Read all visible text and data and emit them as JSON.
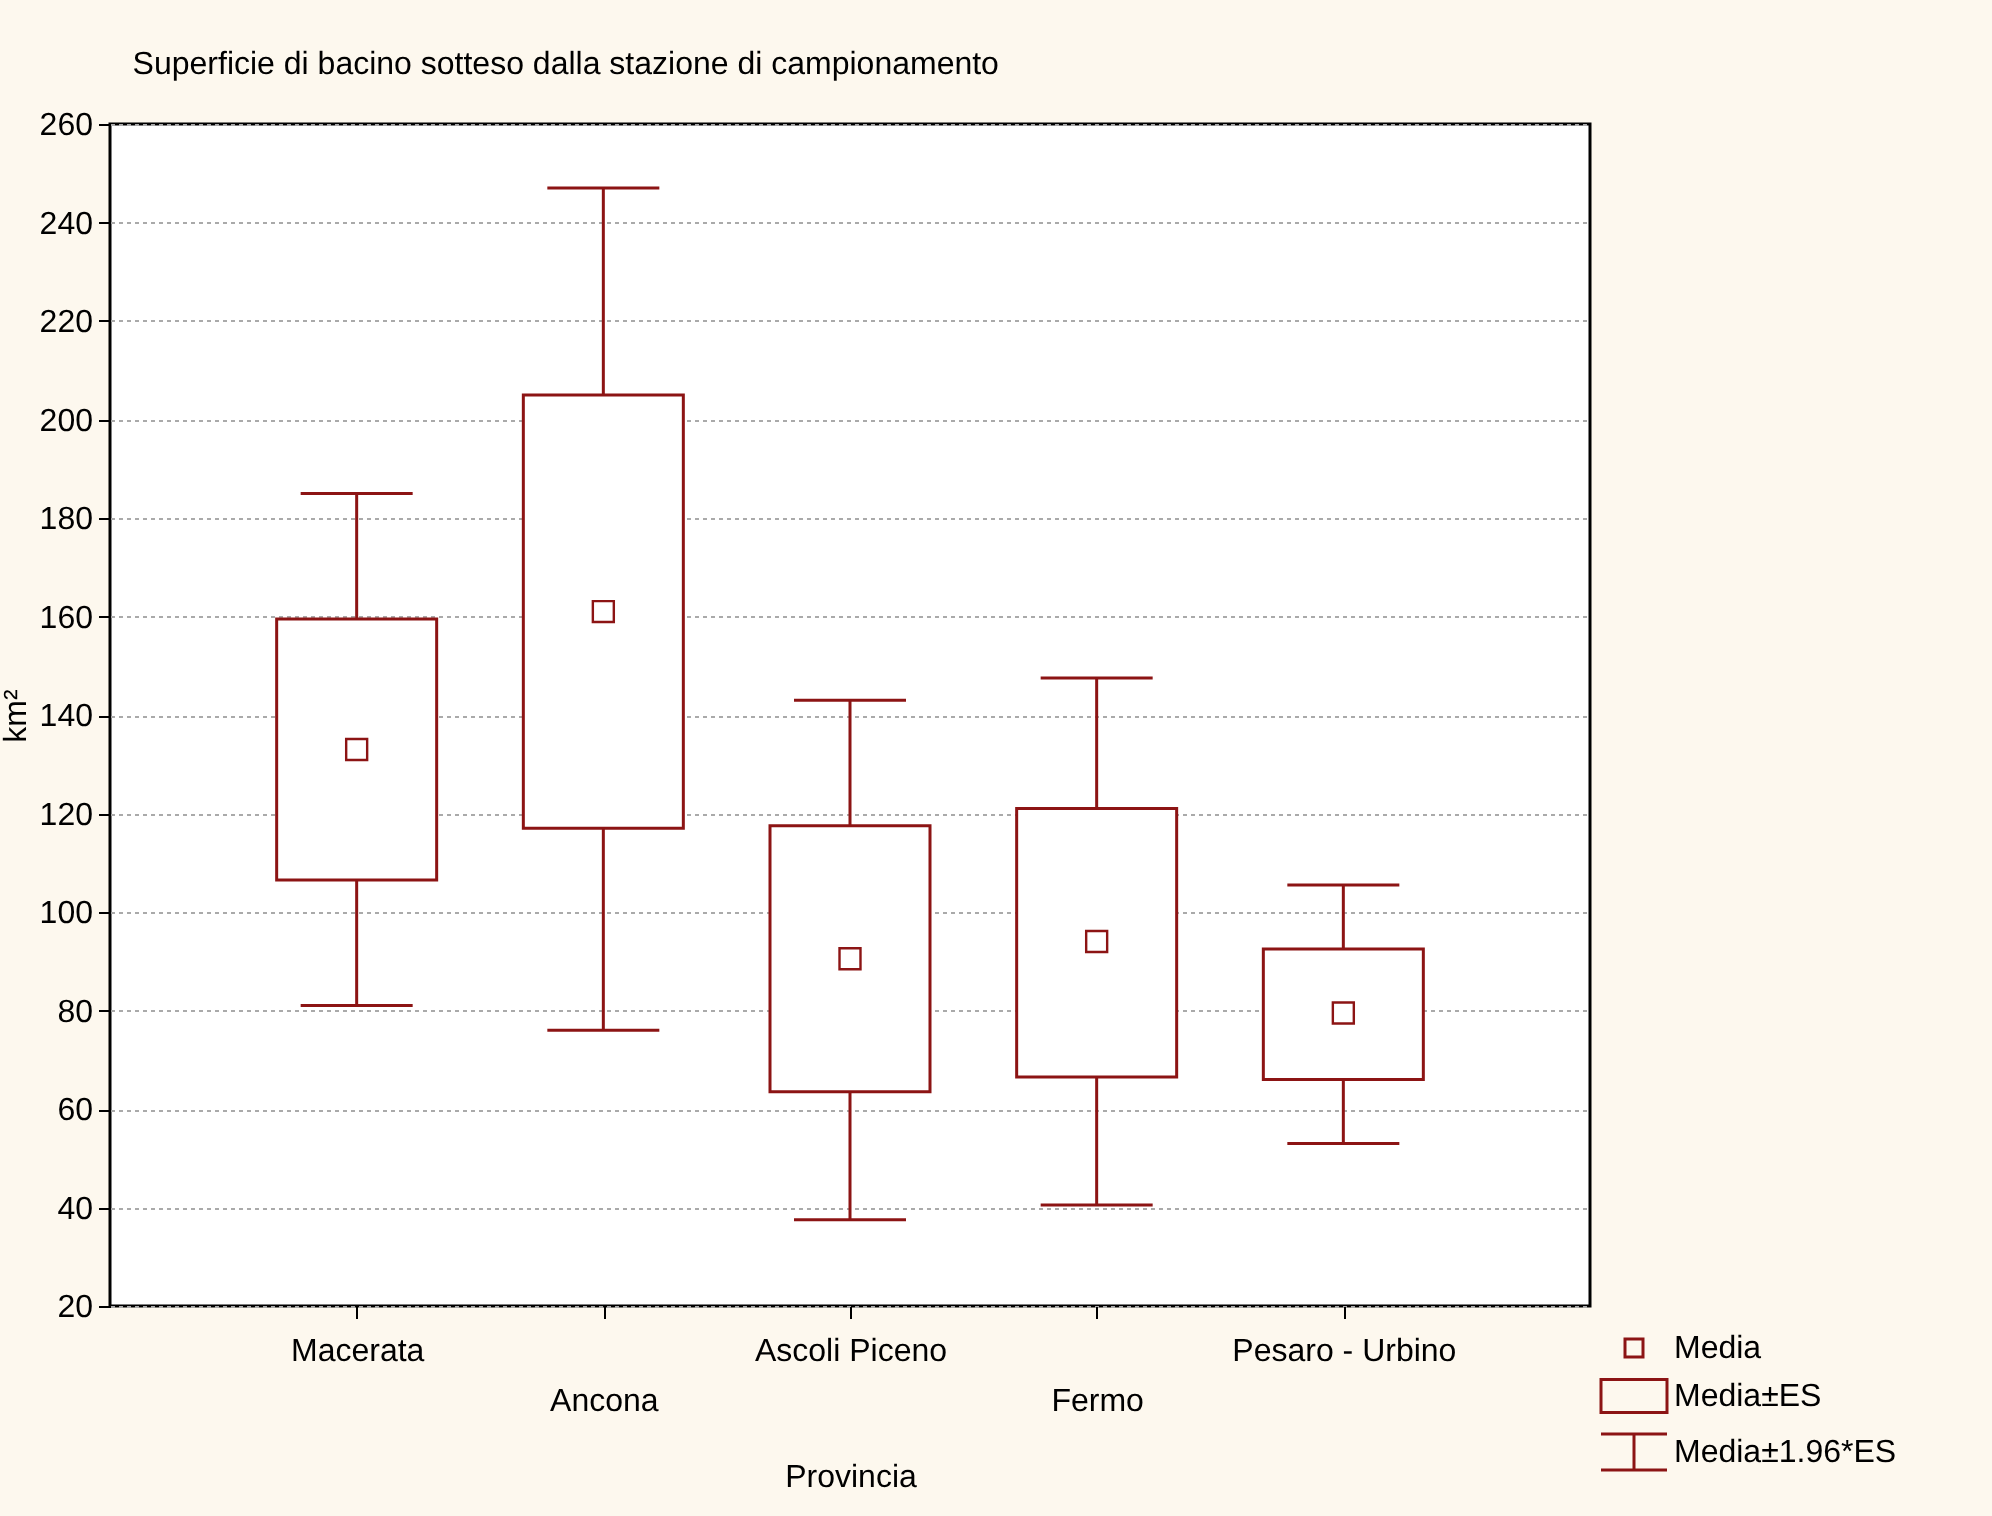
{
  "chart_data": {
    "type": "box",
    "title": "Superficie di bacino sotteso dalla stazione di campionamento",
    "xlabel": "Provincia",
    "ylabel": "km²",
    "categories": [
      "Macerata",
      "Ancona",
      "Ascoli Piceno",
      "Fermo",
      "Pesaro - Urbino"
    ],
    "ylim": [
      20,
      260
    ],
    "yticks": [
      20,
      40,
      60,
      80,
      100,
      120,
      140,
      160,
      180,
      200,
      220,
      240,
      260
    ],
    "grid": "y",
    "legend": "bottom right",
    "marker": "square",
    "series": [
      {
        "name": "Media±ES",
        "color": "#8c1414",
        "boxes": [
          {
            "low": 81,
            "q1": 106.5,
            "median": 133,
            "q3": 159.5,
            "high": 185
          },
          {
            "low": 76,
            "q1": 117,
            "median": 161,
            "q3": 205,
            "high": 247
          },
          {
            "low": 37.5,
            "q1": 63.5,
            "median": 90.5,
            "q3": 117.5,
            "high": 143
          },
          {
            "low": 40.5,
            "q1": 66.5,
            "median": 94,
            "q3": 121,
            "high": 147.5
          },
          {
            "low": 53,
            "q1": 66,
            "median": 79.5,
            "q3": 92.5,
            "high": 105.5
          }
        ]
      }
    ],
    "annotations": [
      "Media",
      "Media±1.96*ES"
    ]
  }
}
